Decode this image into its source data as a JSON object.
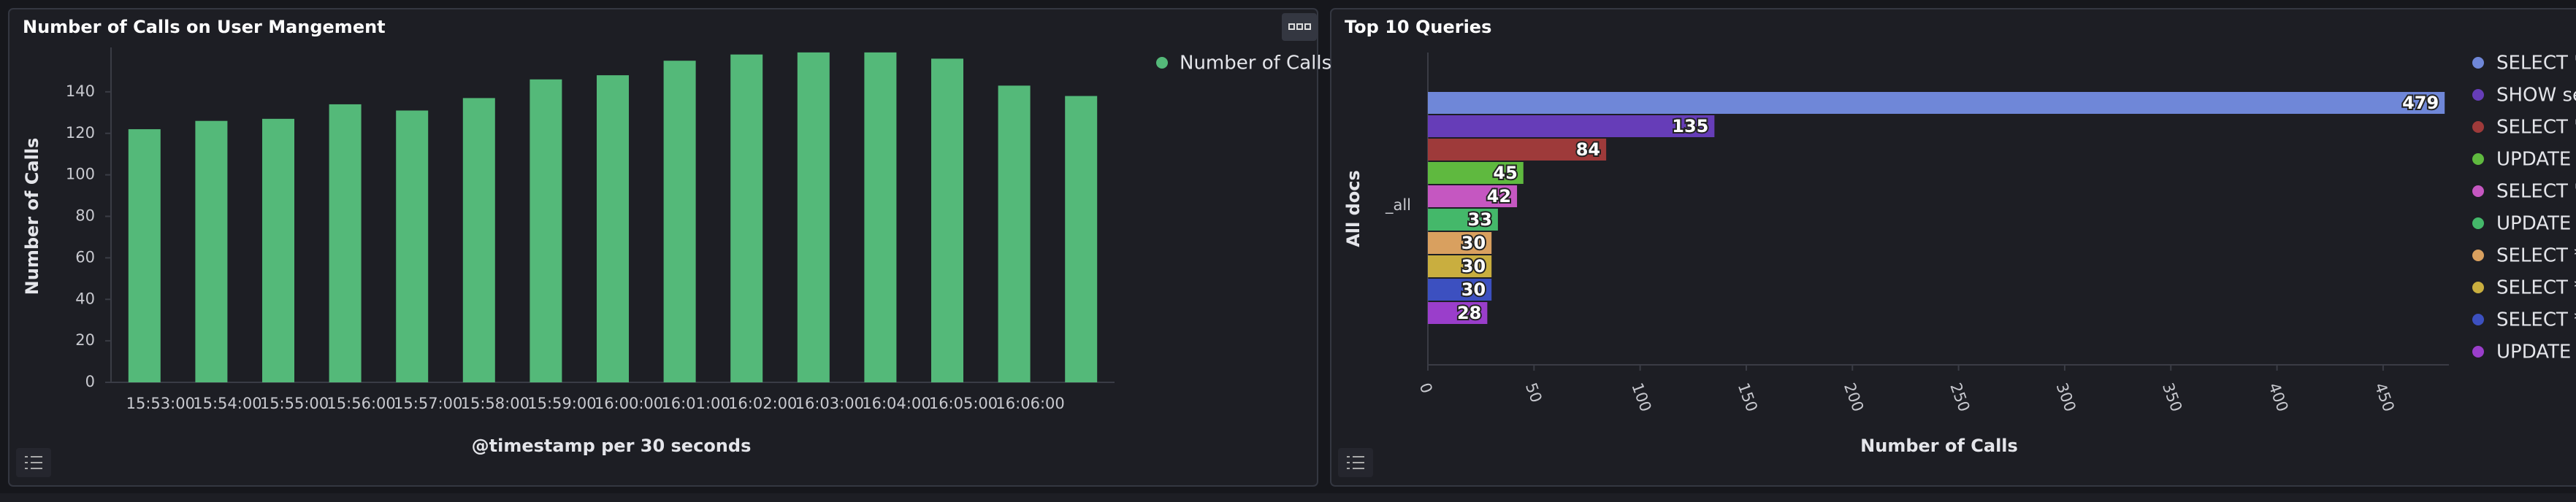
{
  "chart_data": [
    {
      "type": "bar",
      "title": "Number of Calls on User Mangement",
      "categories": [
        "15:53:00",
        "15:54:00",
        "15:55:00",
        "15:56:00",
        "15:57:00",
        "15:58:00",
        "15:59:00",
        "16:00:00",
        "16:01:00",
        "16:02:00",
        "16:03:00",
        "16:04:00",
        "16:05:00",
        "16:06:00",
        null
      ],
      "series": [
        {
          "name": "Number of Calls",
          "color": "#54b979",
          "values": [
            122,
            126,
            127,
            134,
            131,
            137,
            146,
            148,
            155,
            158,
            159,
            159,
            156,
            143,
            138
          ]
        }
      ],
      "ylim": [
        0,
        160
      ],
      "yticks": [
        0,
        20,
        40,
        60,
        80,
        100,
        120,
        140
      ],
      "y_label": "Number of Calls",
      "x_label": "@timestamp per 30 seconds",
      "grid": false,
      "legend": "top-right"
    },
    {
      "type": "bar",
      "orientation": "horizontal",
      "title": "Top 10 Queries",
      "categories": [
        "_all"
      ],
      "series": [
        {
          "name": "SELECT \"",
          "color": "#6f87d8",
          "values": [
            479
          ]
        },
        {
          "name": "SHOW se",
          "color": "#663db8",
          "values": [
            135
          ]
        },
        {
          "name": "SELECT \"",
          "color": "#9e3a3a",
          "values": [
            84
          ]
        },
        {
          "name": "UPDATE \"",
          "color": "#5fb93f",
          "values": [
            45
          ]
        },
        {
          "name": "SELECT \"",
          "color": "#c557c1",
          "values": [
            42
          ]
        },
        {
          "name": "UPDATE \"",
          "color": "#44b86a",
          "values": [
            33
          ]
        },
        {
          "name": "SELECT *",
          "color": "#d9a05f",
          "values": [
            30
          ]
        },
        {
          "name": "SELECT *",
          "color": "#c9ae3f",
          "values": [
            30
          ]
        },
        {
          "name": "SELECT *",
          "color": "#3c50c0",
          "values": [
            30
          ]
        },
        {
          "name": "UPDATE \"",
          "color": "#9a3ecb",
          "values": [
            28
          ]
        }
      ],
      "xlim": [
        0,
        481
      ],
      "xticks": [
        0,
        50,
        100,
        150,
        200,
        250,
        300,
        350,
        400,
        450
      ],
      "y_label": "All docs",
      "x_label": "Number of Calls",
      "grid": false,
      "legend": "top-right"
    }
  ]
}
